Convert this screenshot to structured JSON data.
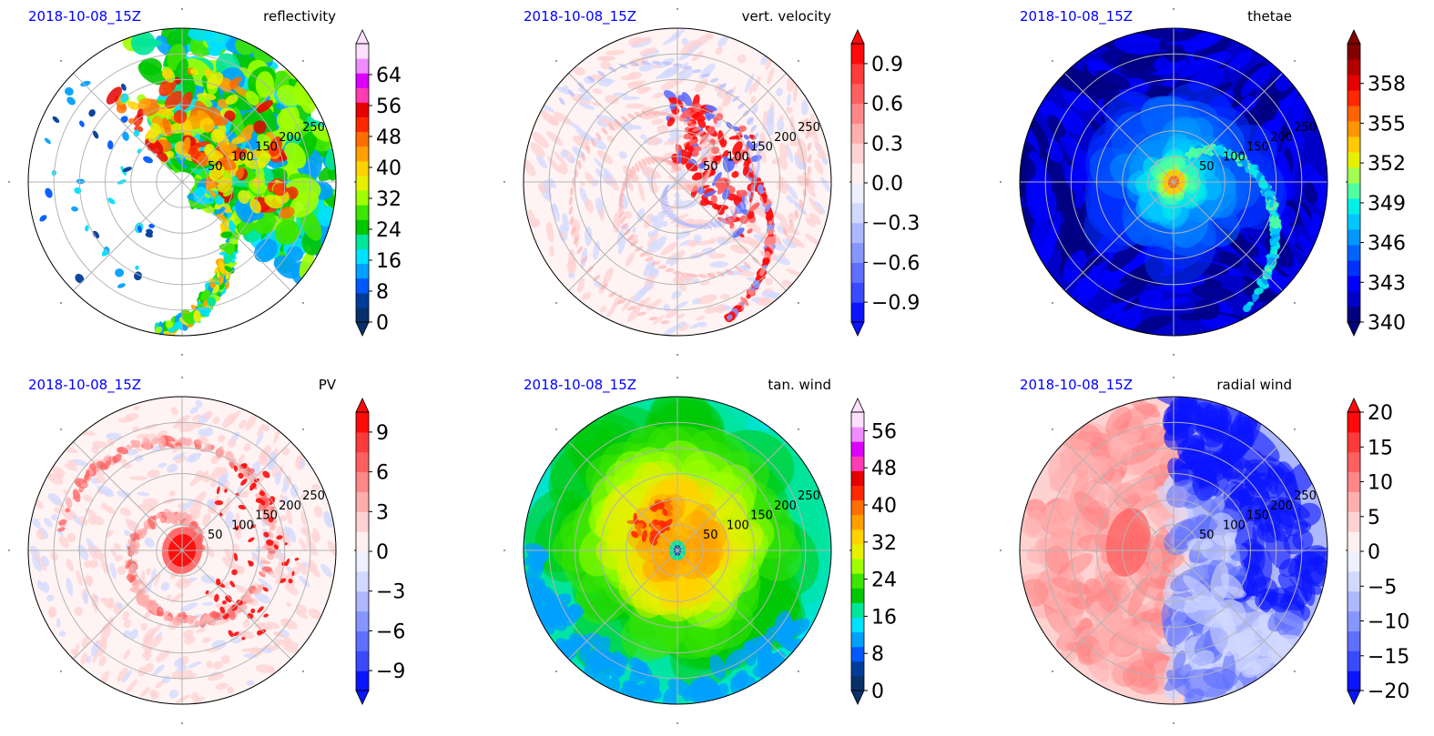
{
  "chart_data": [
    {
      "type": "heatmap",
      "subtype": "polar",
      "date": "2018-10-08_15Z",
      "title": "reflectivity",
      "ring_labels": [
        "50",
        "100",
        "150",
        "200",
        "250"
      ],
      "colorbar": {
        "ticks": [
          "64",
          "56",
          "48",
          "40",
          "32",
          "24",
          "16",
          "8",
          "0"
        ],
        "min": 0,
        "max": 72,
        "extend": "both",
        "colors": [
          "#08306b",
          "#003c9a",
          "#0059ff",
          "#00a0ff",
          "#00e0ff",
          "#00e69a",
          "#00c800",
          "#3ce600",
          "#a0ff00",
          "#e6f000",
          "#ffd200",
          "#ffa000",
          "#ff6e00",
          "#ff2800",
          "#e60000",
          "#ff3cb4",
          "#dc00ff",
          "#f08cff",
          "#fde0fd"
        ]
      },
      "pattern": "refl"
    },
    {
      "type": "heatmap",
      "subtype": "polar",
      "date": "2018-10-08_15Z",
      "title": "vert. velocity",
      "ring_labels": [
        "50",
        "100",
        "150",
        "200",
        "250"
      ],
      "colorbar": {
        "ticks": [
          "0.9",
          "0.6",
          "0.3",
          "0.0",
          "−0.3",
          "−0.6",
          "−0.9"
        ],
        "min": -1.05,
        "max": 1.05,
        "extend": "both",
        "colors": [
          "#0a14ff",
          "#3a4aff",
          "#5f6fff",
          "#8796ff",
          "#aeb8ff",
          "#d2d9ff",
          "#eef0ff",
          "#fff0f0",
          "#ffd2d2",
          "#ffaeae",
          "#ff8787",
          "#ff5f5f",
          "#ff3a3a",
          "#ff0a0a"
        ]
      },
      "pattern": "vv"
    },
    {
      "type": "heatmap",
      "subtype": "polar",
      "date": "2018-10-08_15Z",
      "title": "thetae",
      "ring_labels": [
        "50",
        "100",
        "150",
        "200",
        "250"
      ],
      "colorbar": {
        "ticks": [
          "358",
          "355",
          "352",
          "349",
          "346",
          "343",
          "340"
        ],
        "min": 340,
        "max": 361,
        "extend": "both",
        "colors": [
          "#000080",
          "#0000c8",
          "#0000ff",
          "#0032ff",
          "#0064ff",
          "#0096ff",
          "#00c8ff",
          "#00f0e6",
          "#50ffa0",
          "#a0ff50",
          "#e6f000",
          "#ffc800",
          "#ff9600",
          "#ff6400",
          "#ff2800",
          "#e60000",
          "#b40000",
          "#820000"
        ]
      },
      "pattern": "thetae"
    },
    {
      "type": "heatmap",
      "subtype": "polar",
      "date": "2018-10-08_15Z",
      "title": "PV",
      "ring_labels": [
        "50",
        "100",
        "150",
        "200",
        "250"
      ],
      "colorbar": {
        "ticks": [
          "9",
          "6",
          "3",
          "0",
          "−3",
          "−6",
          "−9"
        ],
        "min": -10.5,
        "max": 10.5,
        "extend": "both",
        "colors": [
          "#0a14ff",
          "#3a4aff",
          "#5f6fff",
          "#8796ff",
          "#aeb8ff",
          "#d2d9ff",
          "#eef0ff",
          "#fff0f0",
          "#ffd2d2",
          "#ffaeae",
          "#ff8787",
          "#ff5f5f",
          "#ff3a3a",
          "#ff0a0a"
        ]
      },
      "pattern": "pv"
    },
    {
      "type": "heatmap",
      "subtype": "polar",
      "date": "2018-10-08_15Z",
      "title": "tan. wind",
      "ring_labels": [
        "50",
        "100",
        "150",
        "200",
        "250"
      ],
      "colorbar": {
        "ticks": [
          "56",
          "48",
          "40",
          "32",
          "24",
          "16",
          "8",
          "0"
        ],
        "min": 0,
        "max": 60,
        "extend": "both",
        "colors": [
          "#08306b",
          "#003c9a",
          "#0059ff",
          "#00a0ff",
          "#00e0ff",
          "#00e69a",
          "#00c800",
          "#3ce600",
          "#a0ff00",
          "#e6f000",
          "#ffd200",
          "#ffa000",
          "#ff6e00",
          "#ff2800",
          "#e60000",
          "#ff3cb4",
          "#dc00ff",
          "#f08cff",
          "#fde0fd"
        ]
      },
      "pattern": "tan"
    },
    {
      "type": "heatmap",
      "subtype": "polar",
      "date": "2018-10-08_15Z",
      "title": "radial wind",
      "ring_labels": [
        "50",
        "100",
        "150",
        "200",
        "250"
      ],
      "colorbar": {
        "ticks": [
          "20",
          "15",
          "10",
          "5",
          "0",
          "−5",
          "−10",
          "−15",
          "−20"
        ],
        "min": -20,
        "max": 20,
        "extend": "both",
        "colors": [
          "#0a14ff",
          "#3a4aff",
          "#5f6fff",
          "#8796ff",
          "#aeb8ff",
          "#d2d9ff",
          "#eef0ff",
          "#fff0f0",
          "#ffd2d2",
          "#ffaeae",
          "#ff8787",
          "#ff5f5f",
          "#ff3a3a",
          "#ff0a0a"
        ]
      },
      "pattern": "rad"
    }
  ]
}
